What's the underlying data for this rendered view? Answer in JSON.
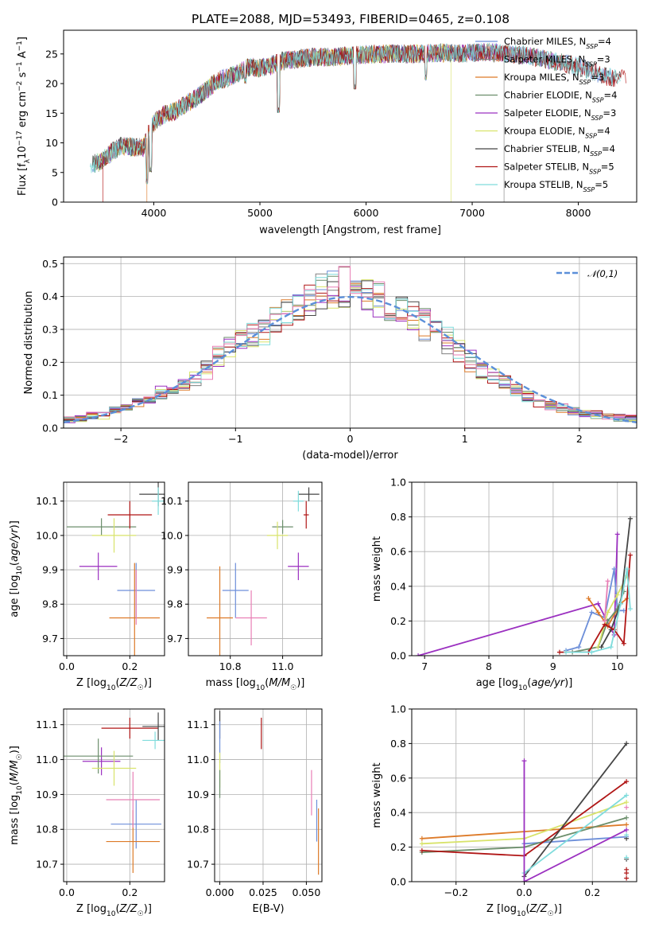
{
  "figure_title": "PLATE=2088, MJD=53493, FIBERID=0465, z=0.108",
  "colors": {
    "Chabrier MILES": "#6d8fd9",
    "Salpeter MILES": "#808080",
    "Kroupa MILES": "#dd7a28",
    "Chabrier ELODIE": "#6b8e6b",
    "Salpeter ELODIE": "#9b30c0",
    "Kroupa ELODIE": "#d8e36a",
    "Chabrier STELIB": "#454545",
    "Salpeter STELIB": "#b01515",
    "Kroupa STELIB": "#7fdcdc",
    "extra_pink": "#e87fb5",
    "gaussian": "#5b8fd9"
  },
  "chart_data": [
    {
      "type": "line",
      "id": "spectrum",
      "title": "PLATE=2088, MJD=53493, FIBERID=0465, z=0.108",
      "xlabel": "wavelength [Angstrom, rest frame]",
      "ylabel": "Flux [fλ10⁻¹⁷ erg cm⁻² s⁻¹ A⁻¹]",
      "xlim": [
        3150,
        8550
      ],
      "ylim": [
        0,
        29
      ],
      "xticks": [
        4000,
        5000,
        6000,
        7000,
        8000
      ],
      "yticks": [
        0,
        5,
        10,
        15,
        20,
        25
      ],
      "continuum": {
        "x": [
          3400,
          3500,
          3600,
          3700,
          3800,
          3900,
          3950,
          4000,
          4100,
          4200,
          4300,
          4400,
          4500,
          4600,
          4700,
          4800,
          4900,
          5000,
          5100,
          5200,
          5300,
          5500,
          5700,
          5900,
          6100,
          6300,
          6500,
          6700,
          6900,
          7100,
          7300,
          7500,
          7700,
          7900,
          8100,
          8300
        ],
        "y": [
          6.3,
          6.8,
          8.4,
          9.5,
          9.3,
          9.2,
          11.5,
          13.5,
          14.8,
          15.3,
          16.5,
          17.5,
          19.0,
          20.5,
          21.0,
          21.8,
          22.8,
          22.6,
          23.0,
          23.8,
          24.0,
          24.5,
          24.5,
          24.8,
          25.0,
          25.0,
          25.0,
          25.2,
          25.1,
          25.3,
          25.1,
          24.8,
          24.0,
          23.3,
          22.3,
          21.0
        ]
      },
      "dips": [
        {
          "x": 3934,
          "y": 3.5
        },
        {
          "x": 3969,
          "y": 5.5
        },
        {
          "x": 4861,
          "y": 20.5
        },
        {
          "x": 5175,
          "y": 15.5
        },
        {
          "x": 5895,
          "y": 19.5
        },
        {
          "x": 6563,
          "y": 21.0
        }
      ],
      "dropouts": [
        {
          "x": 3520,
          "series": "Salpeter STELIB"
        },
        {
          "x": 3935,
          "series": "Kroupa MILES"
        },
        {
          "x": 6800,
          "series": "Kroupa ELODIE"
        },
        {
          "x": 7300,
          "series": "Salpeter MILES"
        },
        {
          "x": 7400,
          "series": "Salpeter STELIB"
        }
      ],
      "legend_loc": "right",
      "legend": [
        {
          "name": "Chabrier MILES",
          "nssp": "4"
        },
        {
          "name": "Salpeter MILES",
          "nssp": "3"
        },
        {
          "name": "Kroupa MILES",
          "nssp": "3"
        },
        {
          "name": "Chabrier ELODIE",
          "nssp": "4"
        },
        {
          "name": "Salpeter ELODIE",
          "nssp": "3"
        },
        {
          "name": "Kroupa ELODIE",
          "nssp": "4"
        },
        {
          "name": "Chabrier STELIB",
          "nssp": "4"
        },
        {
          "name": "Salpeter STELIB",
          "nssp": "5"
        },
        {
          "name": "Kroupa STELIB",
          "nssp": "5"
        }
      ]
    },
    {
      "type": "histogram",
      "id": "residuals",
      "xlabel": "(data-model)/error",
      "ylabel": "Normed distribution",
      "xlim": [
        -2.5,
        2.5
      ],
      "ylim": [
        0,
        0.52
      ],
      "xticks": [
        -2,
        -1,
        0,
        1,
        2
      ],
      "yticks": [
        0.0,
        0.1,
        0.2,
        0.3,
        0.4,
        0.5
      ],
      "bin_width": 0.1,
      "envelope_centers": [
        -2.45,
        -2.35,
        -2.25,
        -2.15,
        -2.05,
        -1.95,
        -1.85,
        -1.75,
        -1.65,
        -1.55,
        -1.45,
        -1.35,
        -1.25,
        -1.15,
        -1.05,
        -0.95,
        -0.85,
        -0.75,
        -0.65,
        -0.55,
        -0.45,
        -0.35,
        -0.25,
        -0.15,
        -0.05,
        0.05,
        0.15,
        0.25,
        0.35,
        0.45,
        0.55,
        0.65,
        0.75,
        0.85,
        0.95,
        1.05,
        1.15,
        1.25,
        1.35,
        1.45,
        1.55,
        1.65,
        1.75,
        1.85,
        1.95,
        2.05,
        2.15,
        2.25,
        2.35,
        2.45
      ],
      "envelope_values": [
        0.025,
        0.03,
        0.035,
        0.04,
        0.05,
        0.065,
        0.08,
        0.09,
        0.105,
        0.115,
        0.13,
        0.15,
        0.18,
        0.215,
        0.245,
        0.265,
        0.28,
        0.3,
        0.325,
        0.35,
        0.37,
        0.39,
        0.41,
        0.425,
        0.43,
        0.42,
        0.41,
        0.395,
        0.375,
        0.355,
        0.335,
        0.315,
        0.29,
        0.265,
        0.235,
        0.2,
        0.175,
        0.155,
        0.14,
        0.115,
        0.095,
        0.08,
        0.07,
        0.06,
        0.05,
        0.045,
        0.04,
        0.035,
        0.03,
        0.03
      ],
      "histogram_series": [
        "Chabrier MILES",
        "Salpeter MILES",
        "Kroupa MILES",
        "Chabrier ELODIE",
        "Salpeter ELODIE",
        "Kroupa ELODIE",
        "Chabrier STELIB",
        "Salpeter STELIB",
        "Kroupa STELIB",
        "extra_pink"
      ],
      "gaussian": {
        "label": "𝒩(0,1)",
        "mean": 0,
        "sigma": 1
      },
      "legend_loc": "upper right"
    },
    {
      "type": "errorbar",
      "id": "age_vs_Z",
      "xlabel_plain": "Z [log",
      "ylabel": "age [log10(age/yr)]",
      "xlim": [
        -0.01,
        0.31
      ],
      "ylim": [
        9.65,
        10.155
      ],
      "xticks": [
        0.0,
        0.2
      ],
      "yticks": [
        9.7,
        9.8,
        9.9,
        10.0,
        10.1
      ],
      "points": [
        {
          "series": "Chabrier MILES",
          "x": 0.22,
          "xerr": 0.06,
          "y": 9.84,
          "yerr": 0.08
        },
        {
          "series": "Kroupa MILES",
          "x": 0.215,
          "xerr": 0.08,
          "y": 9.76,
          "yerr": 0.16
        },
        {
          "series": "extra_pink",
          "x": 0.22,
          "xerr": 0.0,
          "y": 9.82,
          "yerr": 0.08
        },
        {
          "series": "Salpeter ELODIE",
          "x": 0.1,
          "xerr": 0.06,
          "y": 9.91,
          "yerr": 0.04
        },
        {
          "series": "Chabrier ELODIE",
          "x": 0.11,
          "xerr": 0.11,
          "y": 10.025,
          "yerr": 0.025
        },
        {
          "series": "Kroupa ELODIE",
          "x": 0.15,
          "xerr": 0.07,
          "y": 10.0,
          "yerr": 0.05
        },
        {
          "series": "Salpeter STELIB",
          "x": 0.2,
          "xerr": 0.07,
          "y": 10.06,
          "yerr": 0.04
        },
        {
          "series": "Chabrier STELIB",
          "x": 0.29,
          "xerr": 0.06,
          "y": 10.12,
          "yerr": 0.035
        },
        {
          "series": "Kroupa STELIB",
          "x": 0.29,
          "xerr": 0.02,
          "y": 10.1,
          "yerr": 0.04
        }
      ]
    },
    {
      "type": "errorbar",
      "id": "age_vs_mass",
      "xlabel_plain": "mass [log",
      "ylabel": "",
      "xlim": [
        10.64,
        11.15
      ],
      "ylim": [
        9.65,
        10.155
      ],
      "xticks": [
        10.8,
        11.0
      ],
      "yticks": [
        9.7,
        9.8,
        9.9,
        10.0,
        10.1
      ],
      "points": [
        {
          "series": "Chabrier MILES",
          "x": 10.82,
          "xerr": 0.05,
          "y": 9.84,
          "yerr": 0.08
        },
        {
          "series": "Kroupa MILES",
          "x": 10.76,
          "xerr": 0.05,
          "y": 9.76,
          "yerr": 0.15
        },
        {
          "series": "extra_pink",
          "x": 10.88,
          "xerr": 0.06,
          "y": 9.76,
          "yerr": 0.08
        },
        {
          "series": "Salpeter ELODIE",
          "x": 11.06,
          "xerr": 0.04,
          "y": 9.91,
          "yerr": 0.04
        },
        {
          "series": "Chabrier ELODIE",
          "x": 11.0,
          "xerr": 0.04,
          "y": 10.025,
          "yerr": 0.02
        },
        {
          "series": "Kroupa ELODIE",
          "x": 10.98,
          "xerr": 0.04,
          "y": 10.0,
          "yerr": 0.04
        },
        {
          "series": "Salpeter STELIB",
          "x": 11.09,
          "xerr": 0.01,
          "y": 10.06,
          "yerr": 0.04
        },
        {
          "series": "Chabrier STELIB",
          "x": 11.1,
          "xerr": 0.04,
          "y": 10.12,
          "yerr": 0.02
        },
        {
          "series": "Kroupa STELIB",
          "x": 11.06,
          "xerr": 0.02,
          "y": 10.1,
          "yerr": 0.03
        }
      ]
    },
    {
      "type": "line",
      "id": "weight_vs_age",
      "xlabel_plain": "age [log",
      "ylabel": "mass weight",
      "xlim": [
        6.8,
        10.3
      ],
      "ylim": [
        0,
        1.0
      ],
      "xticks": [
        7,
        8,
        9,
        10
      ],
      "yticks": [
        0.0,
        0.2,
        0.4,
        0.6,
        0.8,
        1.0
      ],
      "series": [
        {
          "name": "Salpeter ELODIE",
          "x": [
            6.9,
            9.7,
            9.95,
            10.0
          ],
          "y": [
            0.0,
            0.3,
            0.12,
            0.7
          ]
        },
        {
          "name": "Chabrier MILES",
          "x": [
            9.2,
            9.4,
            9.6,
            9.8,
            9.95,
            10.0,
            10.1
          ],
          "y": [
            0.03,
            0.05,
            0.25,
            0.22,
            0.5,
            0.26,
            0.26
          ]
        },
        {
          "name": "Kroupa MILES",
          "x": [
            9.55,
            9.7,
            9.85,
            10.05,
            10.15
          ],
          "y": [
            0.33,
            0.25,
            0.17,
            0.3,
            0.33
          ]
        },
        {
          "name": "Chabrier ELODIE",
          "x": [
            9.3,
            9.7,
            9.85,
            10.0,
            10.1
          ],
          "y": [
            0.02,
            0.05,
            0.2,
            0.27,
            0.37
          ]
        },
        {
          "name": "Kroupa ELODIE",
          "x": [
            9.7,
            9.85,
            10.0,
            10.15
          ],
          "y": [
            0.05,
            0.25,
            0.35,
            0.46
          ]
        },
        {
          "name": "Chabrier STELIB",
          "x": [
            9.75,
            9.9,
            10.05,
            10.2
          ],
          "y": [
            0.05,
            0.15,
            0.3,
            0.79
          ]
        },
        {
          "name": "Salpeter STELIB",
          "x": [
            9.1,
            9.55,
            9.8,
            9.95,
            10.1,
            10.2
          ],
          "y": [
            0.02,
            0.02,
            0.18,
            0.15,
            0.07,
            0.58
          ]
        },
        {
          "name": "Kroupa STELIB",
          "x": [
            9.2,
            9.6,
            9.9,
            10.05,
            10.15,
            10.2
          ],
          "y": [
            0.02,
            0.02,
            0.05,
            0.3,
            0.5,
            0.27
          ]
        },
        {
          "name": "extra_pink",
          "x": [
            9.8,
            9.85
          ],
          "y": [
            0.2,
            0.43
          ]
        }
      ]
    },
    {
      "type": "errorbar",
      "id": "mass_vs_Z",
      "xlabel_plain": "Z [log",
      "ylabel": "mass [log10(M/M☉)]",
      "xlim": [
        -0.01,
        0.31
      ],
      "ylim": [
        10.65,
        11.145
      ],
      "xticks": [
        0.0,
        0.2
      ],
      "yticks": [
        10.7,
        10.8,
        10.9,
        11.0,
        11.1
      ],
      "points": [
        {
          "series": "Chabrier MILES",
          "x": 0.22,
          "xerr": 0.08,
          "y": 10.815,
          "yerr": 0.07
        },
        {
          "series": "Kroupa MILES",
          "x": 0.21,
          "xerr": 0.085,
          "y": 10.765,
          "yerr": 0.09
        },
        {
          "series": "extra_pink",
          "x": 0.21,
          "xerr": 0.085,
          "y": 10.885,
          "yerr": 0.08
        },
        {
          "series": "Salpeter ELODIE",
          "x": 0.11,
          "xerr": 0.06,
          "y": 10.995,
          "yerr": 0.04
        },
        {
          "series": "Chabrier ELODIE",
          "x": 0.1,
          "xerr": 0.11,
          "y": 11.01,
          "yerr": 0.05
        },
        {
          "series": "Kroupa ELODIE",
          "x": 0.15,
          "xerr": 0.07,
          "y": 10.975,
          "yerr": 0.05
        },
        {
          "series": "Salpeter STELIB",
          "x": 0.2,
          "xerr": 0.09,
          "y": 11.09,
          "yerr": 0.03
        },
        {
          "series": "Chabrier STELIB",
          "x": 0.29,
          "xerr": 0.05,
          "y": 11.095,
          "yerr": 0.04
        },
        {
          "series": "Kroupa STELIB",
          "x": 0.28,
          "xerr": 0.04,
          "y": 11.055,
          "yerr": 0.025
        }
      ]
    },
    {
      "type": "errorbar",
      "id": "mass_vs_ebv",
      "xlabel": "E(B-V)",
      "ylabel": "",
      "xlim": [
        -0.003,
        0.059
      ],
      "ylim": [
        10.65,
        11.145
      ],
      "xticks": [
        0.0,
        0.025,
        0.05
      ],
      "yticks": [
        10.7,
        10.8,
        10.9,
        11.0,
        11.1
      ],
      "points": [
        {
          "series": "Chabrier STELIB",
          "x": 0.0,
          "xerr": 0.0,
          "y": 11.1,
          "yerr": 0.04
        },
        {
          "series": "Chabrier MILES",
          "x": 0.0,
          "xerr": 0.0,
          "y": 11.05,
          "yerr": 0.06
        },
        {
          "series": "Kroupa ELODIE",
          "x": 0.0,
          "xerr": 0.0,
          "y": 10.97,
          "yerr": 0.05
        },
        {
          "series": "Chabrier ELODIE",
          "x": 0.0,
          "xerr": 0.0,
          "y": 10.93,
          "yerr": 0.04
        },
        {
          "series": "Salpeter STELIB",
          "x": 0.024,
          "xerr": 0.0,
          "y": 11.075,
          "yerr": 0.045
        },
        {
          "series": "extra_pink",
          "x": 0.053,
          "xerr": 0.0,
          "y": 10.905,
          "yerr": 0.065
        },
        {
          "series": "Chabrier MILES",
          "x": 0.056,
          "xerr": 0.0,
          "y": 10.825,
          "yerr": 0.06
        },
        {
          "series": "Kroupa MILES",
          "x": 0.057,
          "xerr": 0.0,
          "y": 10.765,
          "yerr": 0.095
        }
      ]
    },
    {
      "type": "line",
      "id": "weight_vs_Z",
      "xlabel_plain": "Z [log",
      "ylabel": "mass weight",
      "xlim": [
        -0.33,
        0.33
      ],
      "ylim": [
        0,
        1.0
      ],
      "xticks": [
        -0.2,
        0.0,
        0.2
      ],
      "yticks": [
        0.0,
        0.2,
        0.4,
        0.6,
        0.8,
        1.0
      ],
      "series": [
        {
          "name": "Kroupa MILES",
          "x": [
            -0.3,
            0.3
          ],
          "y": [
            0.25,
            0.33
          ]
        },
        {
          "name": "Chabrier MILES",
          "x": [
            0.0,
            0.3
          ],
          "y": [
            0.22,
            0.26
          ]
        },
        {
          "name": "Chabrier ELODIE",
          "x": [
            -0.3,
            0.0,
            0.3
          ],
          "y": [
            0.17,
            0.2,
            0.37
          ]
        },
        {
          "name": "Kroupa ELODIE",
          "x": [
            -0.3,
            0.0,
            0.3
          ],
          "y": [
            0.22,
            0.25,
            0.46
          ]
        },
        {
          "name": "Salpeter STELIB",
          "x": [
            -0.3,
            0.0,
            0.3
          ],
          "y": [
            0.18,
            0.15,
            0.58
          ]
        },
        {
          "name": "Chabrier STELIB",
          "x": [
            0.0,
            0.3
          ],
          "y": [
            0.03,
            0.8
          ]
        },
        {
          "name": "Kroupa STELIB",
          "x": [
            0.0,
            0.3
          ],
          "y": [
            0.05,
            0.5
          ]
        },
        {
          "name": "Salpeter ELODIE",
          "x": [
            0.0,
            0.0,
            0.3
          ],
          "y": [
            0.7,
            0.0,
            0.3
          ]
        }
      ],
      "vertical_markers": [
        {
          "series": "Salpeter STELIB",
          "x": 0.3,
          "y": [
            0.02,
            0.05,
            0.07
          ]
        },
        {
          "series": "Chabrier STELIB",
          "x": 0.3,
          "y": [
            0.13,
            0.25
          ]
        },
        {
          "series": "Kroupa STELIB",
          "x": 0.3,
          "y": [
            0.14,
            0.27
          ]
        },
        {
          "series": "extra_pink",
          "x": 0.3,
          "y": [
            0.43
          ]
        }
      ]
    }
  ]
}
